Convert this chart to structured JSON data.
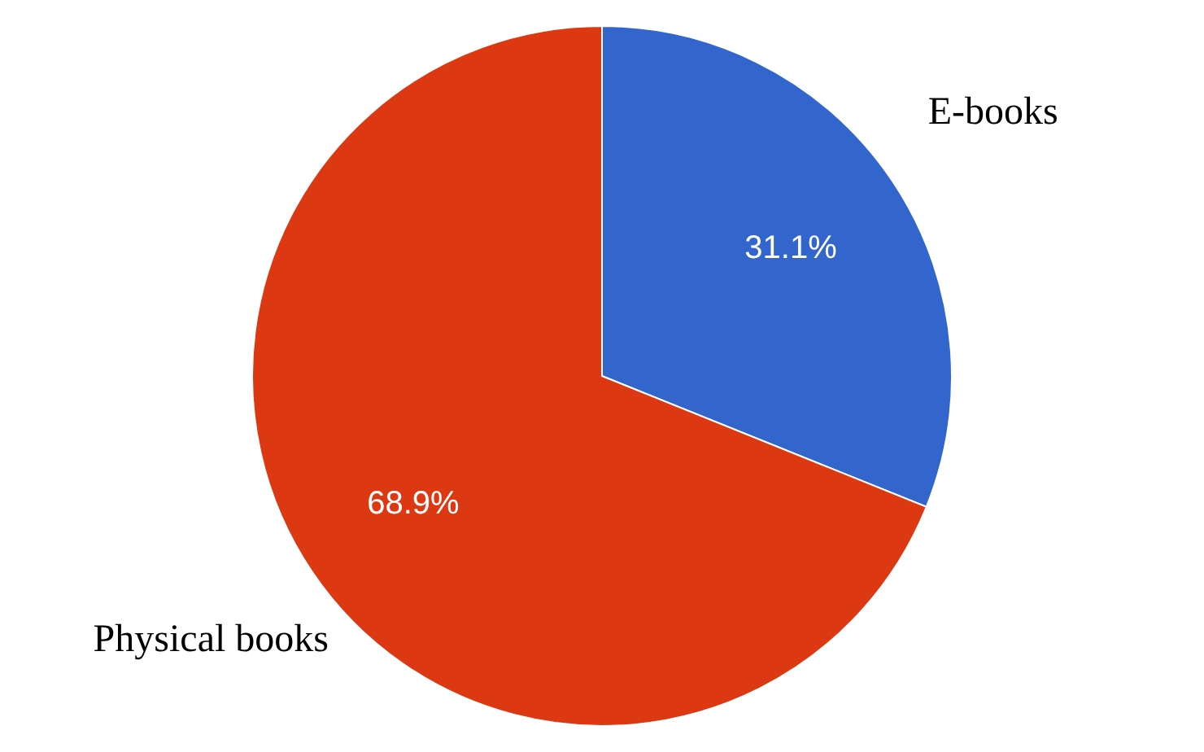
{
  "chart_data": {
    "type": "pie",
    "categories": [
      "E-books",
      "Physical books"
    ],
    "values": [
      31.1,
      68.9
    ],
    "colors": [
      "#3366cc",
      "#dc3912"
    ],
    "value_labels": [
      "31.1%",
      "68.9%"
    ],
    "legend": false
  }
}
